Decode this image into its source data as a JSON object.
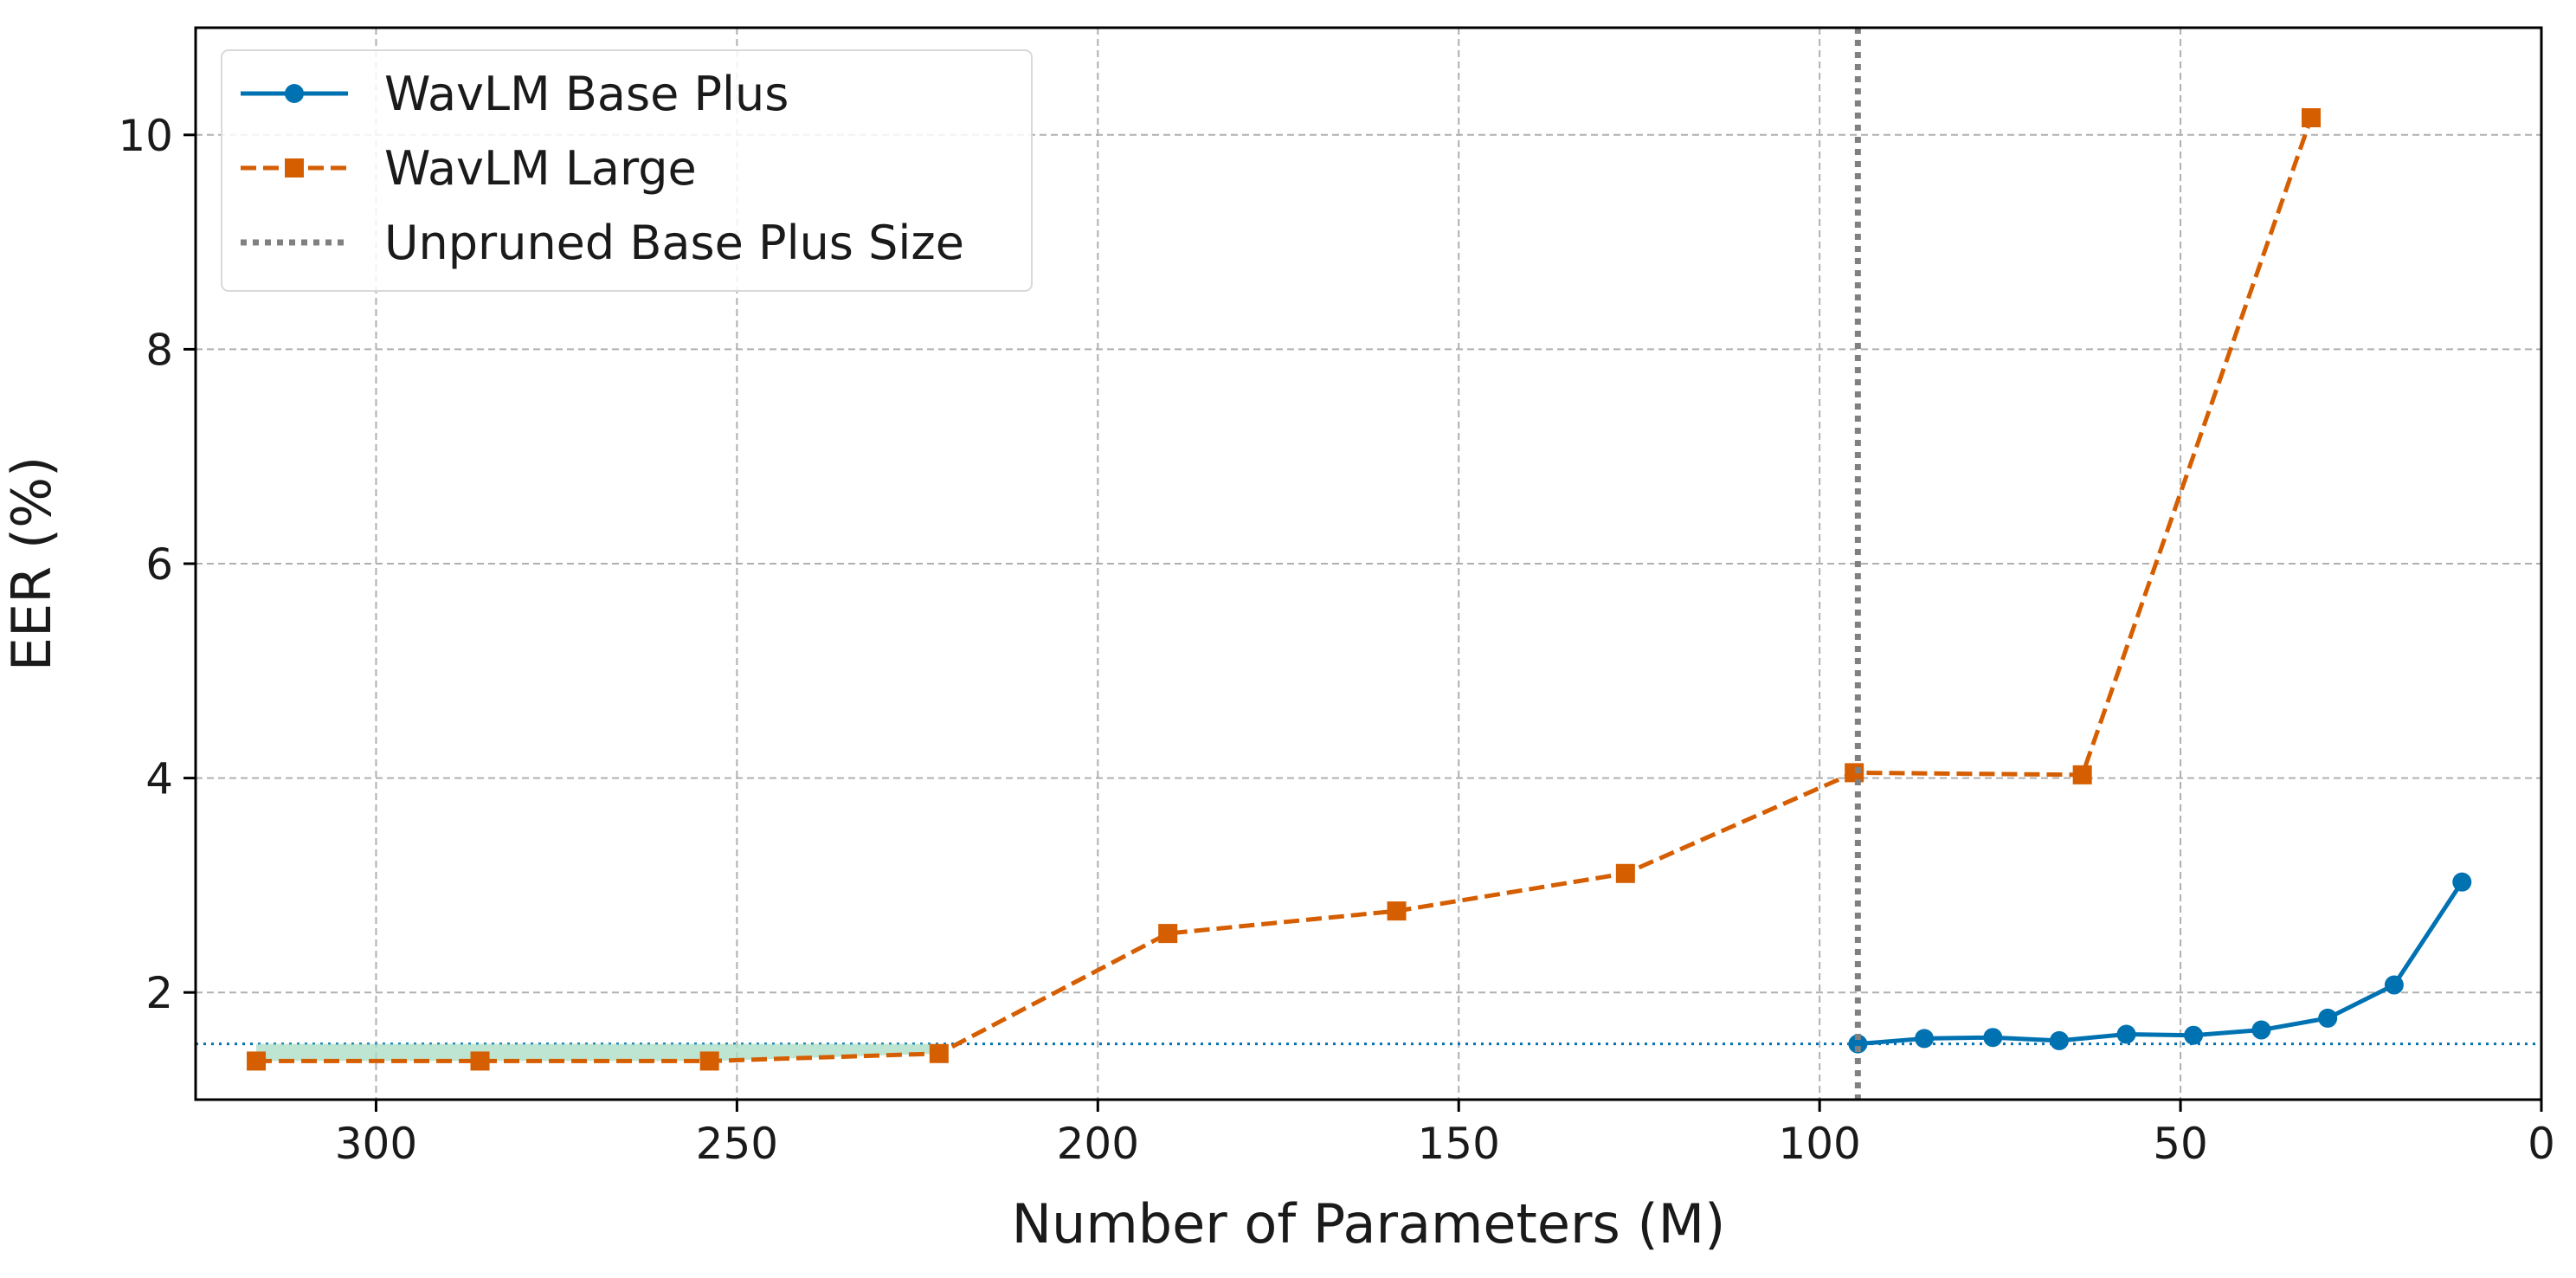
{
  "chart_data": {
    "type": "line",
    "title": "",
    "xlabel": "Number of Parameters (M)",
    "ylabel": "EER (%)",
    "xlim": [
      325,
      0
    ],
    "ylim": [
      1.0,
      11.0
    ],
    "x_ticks": [
      300,
      250,
      200,
      150,
      100,
      50,
      0
    ],
    "y_ticks": [
      2,
      4,
      6,
      8,
      10
    ],
    "grid": true,
    "legend_position": "top-left",
    "series": [
      {
        "name": "WavLM Base Plus",
        "color": "#0072b2",
        "line_style": "solid",
        "marker": "circle",
        "x": [
          94.7,
          85.5,
          76.0,
          66.8,
          57.5,
          48.2,
          38.8,
          29.6,
          20.4,
          11.0
        ],
        "y": [
          1.52,
          1.57,
          1.58,
          1.55,
          1.61,
          1.6,
          1.65,
          1.76,
          2.07,
          3.03
        ]
      },
      {
        "name": "WavLM Large",
        "color": "#d55e00",
        "line_style": "dashed",
        "marker": "square",
        "x": [
          316.6,
          285.6,
          253.8,
          222.0,
          190.3,
          158.6,
          126.9,
          95.2,
          63.6,
          31.9
        ],
        "y": [
          1.36,
          1.36,
          1.36,
          1.43,
          2.55,
          2.76,
          3.11,
          4.05,
          4.03,
          10.16
        ]
      }
    ],
    "annotations": [
      {
        "type": "vline",
        "name": "Unpruned Base Plus Size",
        "x": 94.7,
        "color": "#808080",
        "line_style": "dotted"
      },
      {
        "type": "hline",
        "y": 1.52,
        "color": "#0072b2",
        "line_style": "dotted"
      },
      {
        "type": "fill_between",
        "x_range": [
          316.6,
          222.0
        ],
        "y_top": 1.52,
        "color": "#a8dcc3"
      }
    ]
  }
}
